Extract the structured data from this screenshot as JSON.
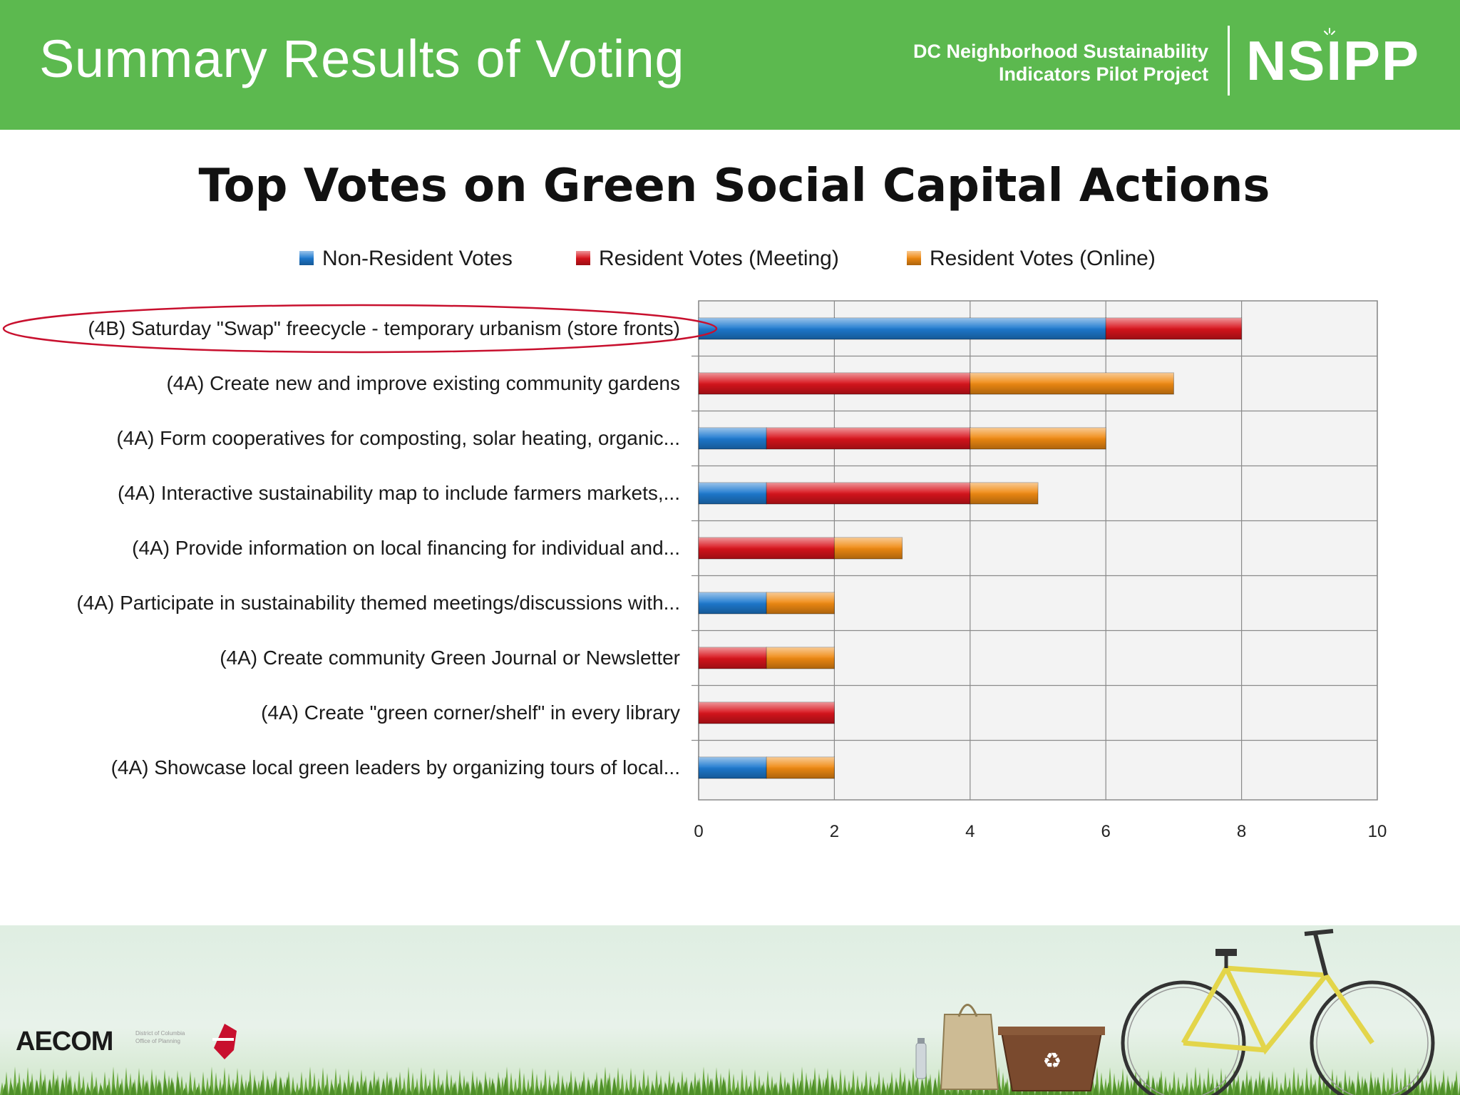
{
  "header": {
    "title": "Summary Results of Voting",
    "org_line1": "DC Neighborhood Sustainability",
    "org_line2": "Indicators Pilot Project",
    "org_logo": "NSIPP"
  },
  "footer": {
    "aecom_logo": "AECOM",
    "dc_office_line1": "District of Columbia",
    "dc_office_line2": "Office of Planning"
  },
  "colors": {
    "header_green": "#5cb94f",
    "non_resident": "#1e7ad0",
    "resident_meeting": "#d9141c",
    "resident_online": "#f08a12",
    "highlight_ellipse": "#c8102e"
  },
  "chart_data": {
    "type": "bar",
    "orientation": "horizontal",
    "stacked": true,
    "title": "Top Votes on Green Social Capital Actions",
    "xlabel": "",
    "ylabel": "",
    "xlim": [
      0,
      10
    ],
    "xticks": [
      0,
      2,
      4,
      6,
      8,
      10
    ],
    "grid": true,
    "legend_position": "top",
    "categories": [
      "(4B) Saturday \"Swap\" freecycle - temporary urbanism (store fronts)",
      "(4A) Create new and improve existing community gardens",
      "(4A) Form cooperatives for composting, solar heating, organic...",
      "(4A) Interactive sustainability map to include farmers markets,...",
      "(4A) Provide information on local financing for individual and...",
      "(4A) Participate in sustainability themed meetings/discussions with...",
      "(4A) Create community Green Journal or Newsletter",
      "(4A) Create \"green corner/shelf\" in every library",
      "(4A) Showcase local green leaders by organizing tours of local..."
    ],
    "series": [
      {
        "name": "Non-Resident Votes",
        "color": "#1e7ad0",
        "values": [
          6,
          0,
          1,
          1,
          0,
          1,
          0,
          0,
          1
        ]
      },
      {
        "name": "Resident Votes (Meeting)",
        "color": "#d9141c",
        "values": [
          2,
          4,
          3,
          3,
          2,
          0,
          1,
          2,
          0
        ]
      },
      {
        "name": "Resident Votes (Online)",
        "color": "#f08a12",
        "values": [
          0,
          3,
          2,
          1,
          1,
          1,
          1,
          0,
          1
        ]
      }
    ],
    "highlighted_category_index": 0
  }
}
